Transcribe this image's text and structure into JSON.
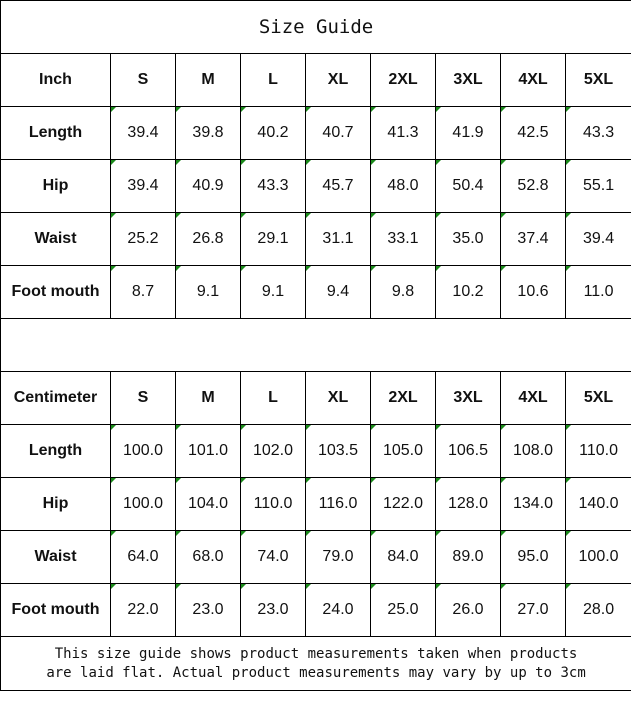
{
  "title": "Size Guide",
  "inch": {
    "header": [
      "Inch",
      "S",
      "M",
      "L",
      "XL",
      "2XL",
      "3XL",
      "4XL",
      "5XL"
    ],
    "rows": [
      {
        "label": "Length",
        "values": [
          "39.4",
          "39.8",
          "40.2",
          "40.7",
          "41.3",
          "41.9",
          "42.5",
          "43.3"
        ]
      },
      {
        "label": "Hip",
        "values": [
          "39.4",
          "40.9",
          "43.3",
          "45.7",
          "48.0",
          "50.4",
          "52.8",
          "55.1"
        ]
      },
      {
        "label": "Waist",
        "values": [
          "25.2",
          "26.8",
          "29.1",
          "31.1",
          "33.1",
          "35.0",
          "37.4",
          "39.4"
        ]
      },
      {
        "label": "Foot mouth",
        "values": [
          "8.7",
          "9.1",
          "9.1",
          "9.4",
          "9.8",
          "10.2",
          "10.6",
          "11.0"
        ]
      }
    ]
  },
  "cm": {
    "header": [
      "Centimeter",
      "S",
      "M",
      "L",
      "XL",
      "2XL",
      "3XL",
      "4XL",
      "5XL"
    ],
    "rows": [
      {
        "label": "Length",
        "values": [
          "100.0",
          "101.0",
          "102.0",
          "103.5",
          "105.0",
          "106.5",
          "108.0",
          "110.0"
        ]
      },
      {
        "label": "Hip",
        "values": [
          "100.0",
          "104.0",
          "110.0",
          "116.0",
          "122.0",
          "128.0",
          "134.0",
          "140.0"
        ]
      },
      {
        "label": "Waist",
        "values": [
          "64.0",
          "68.0",
          "74.0",
          "79.0",
          "84.0",
          "89.0",
          "95.0",
          "100.0"
        ]
      },
      {
        "label": "Foot mouth",
        "values": [
          "22.0",
          "23.0",
          "23.0",
          "24.0",
          "25.0",
          "26.0",
          "27.0",
          "28.0"
        ]
      }
    ]
  },
  "note_line1": "This size guide shows product measurements taken when products",
  "note_line2": "are laid flat. Actual product measurements may vary by up to 3cm",
  "colors": {
    "cell_marker": "#1a8a1a",
    "border": "#000000"
  }
}
